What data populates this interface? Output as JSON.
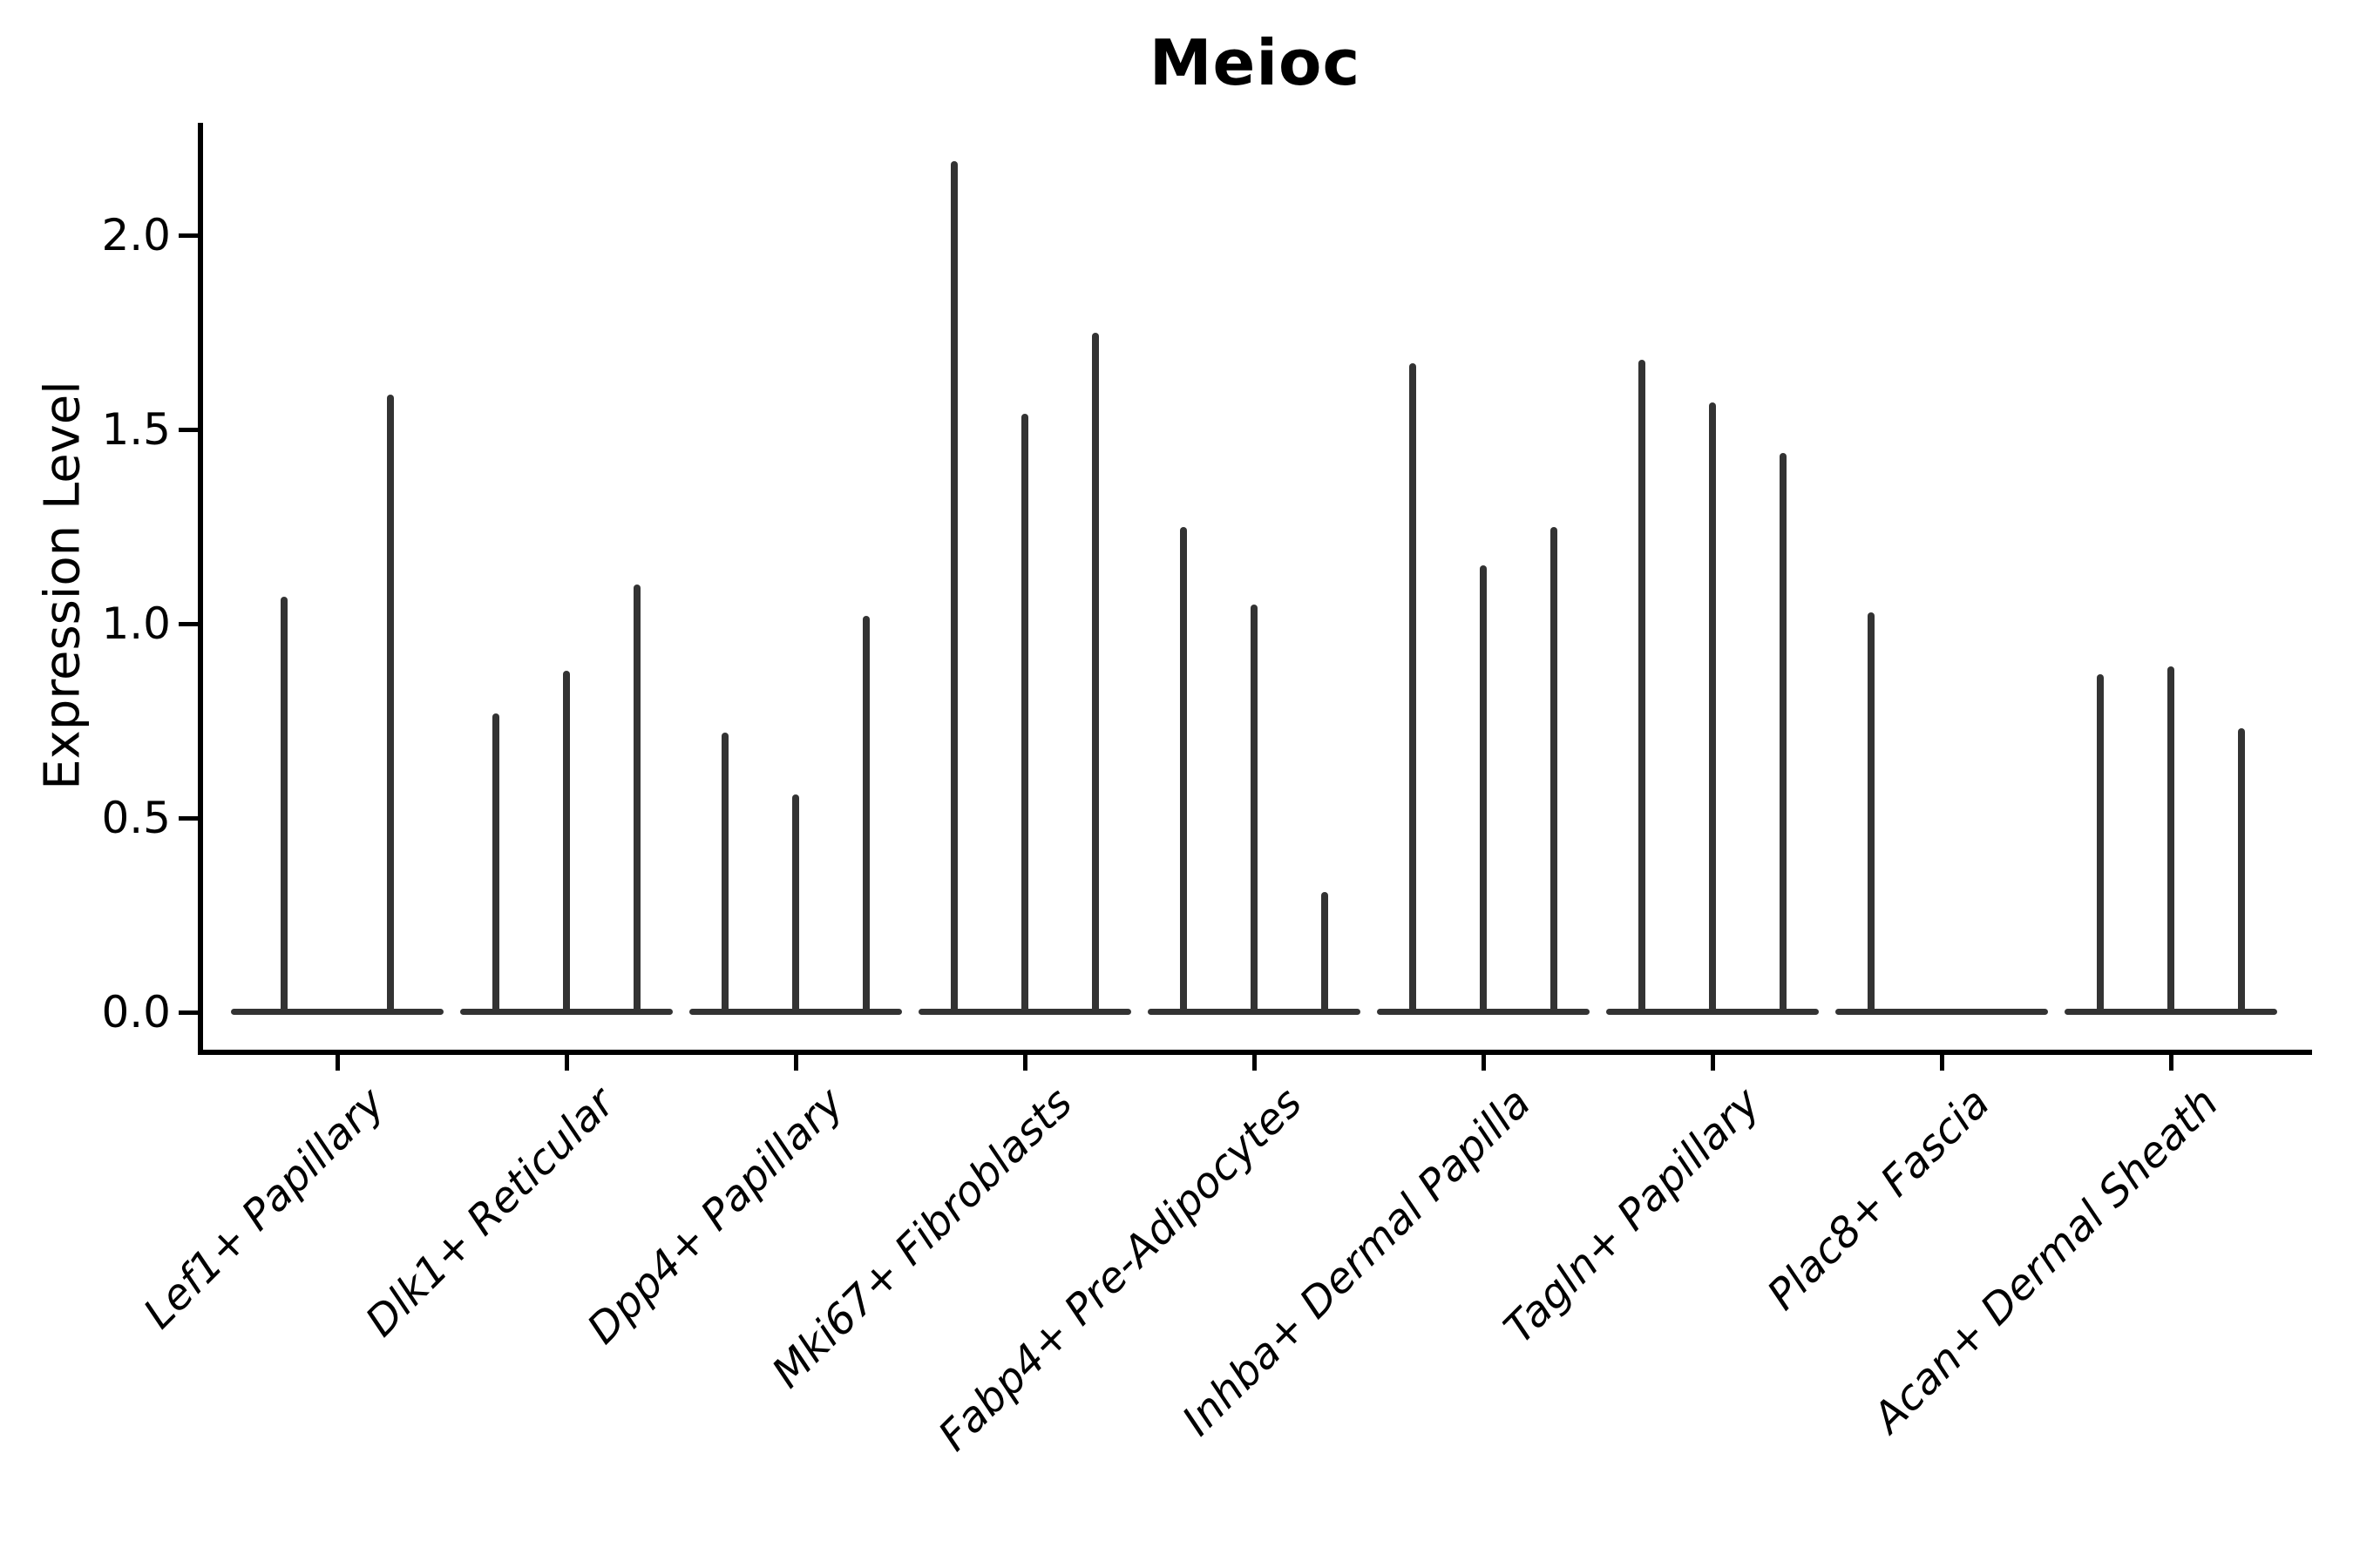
{
  "title": "Meioc",
  "colors": {
    "violin": "#333333",
    "axis": "#000000",
    "text": "#000000",
    "background": "#ffffff"
  },
  "chart_data": {
    "type": "violin",
    "title": "Meioc",
    "xlabel": "",
    "ylabel": "Expression Level",
    "ylim": [
      -0.11,
      2.29
    ],
    "grid": false,
    "legend": null,
    "yticks": [
      0.0,
      0.5,
      1.0,
      1.5,
      2.0
    ],
    "ytick_labels": [
      "0.0",
      "0.5",
      "1.0",
      "1.5",
      "2.0"
    ],
    "categories": [
      "Lef1+ Papillary",
      "Dlk1+ Reticular",
      "Dpp4+ Papillary",
      "Mki67+ Fibroblasts",
      "Fabp4+ Pre-Adipocytes",
      "Inhba+ Dermal Papilla",
      "Tagln+ Papillary",
      "Plac8+ Fascia",
      "Acan+ Dermal Sheath"
    ],
    "groups": [
      {
        "label": "Lef1+ Papillary",
        "violin_maxima": [
          1.07,
          1.59
        ]
      },
      {
        "label": "Dlk1+ Reticular",
        "violin_maxima": [
          0.77,
          0.88,
          1.1
        ]
      },
      {
        "label": "Dpp4+ Papillary",
        "violin_maxima": [
          0.72,
          0.56,
          1.02
        ]
      },
      {
        "label": "Mki67+ Fibroblasts",
        "violin_maxima": [
          2.19,
          1.54,
          1.75
        ]
      },
      {
        "label": "Fabp4+ Pre-Adipocytes",
        "violin_maxima": [
          1.25,
          1.05,
          0.31
        ]
      },
      {
        "label": "Inhba+ Dermal Papilla",
        "violin_maxima": [
          1.67,
          1.15,
          1.25
        ]
      },
      {
        "label": "Tagln+ Papillary",
        "violin_maxima": [
          1.68,
          1.57,
          1.44
        ]
      },
      {
        "label": "Plac8+ Fascia",
        "violin_maxima": [
          1.03,
          0.0,
          0.0
        ]
      },
      {
        "label": "Acan+ Dermal Sheath",
        "violin_maxima": [
          0.87,
          0.89,
          0.73
        ]
      }
    ]
  }
}
